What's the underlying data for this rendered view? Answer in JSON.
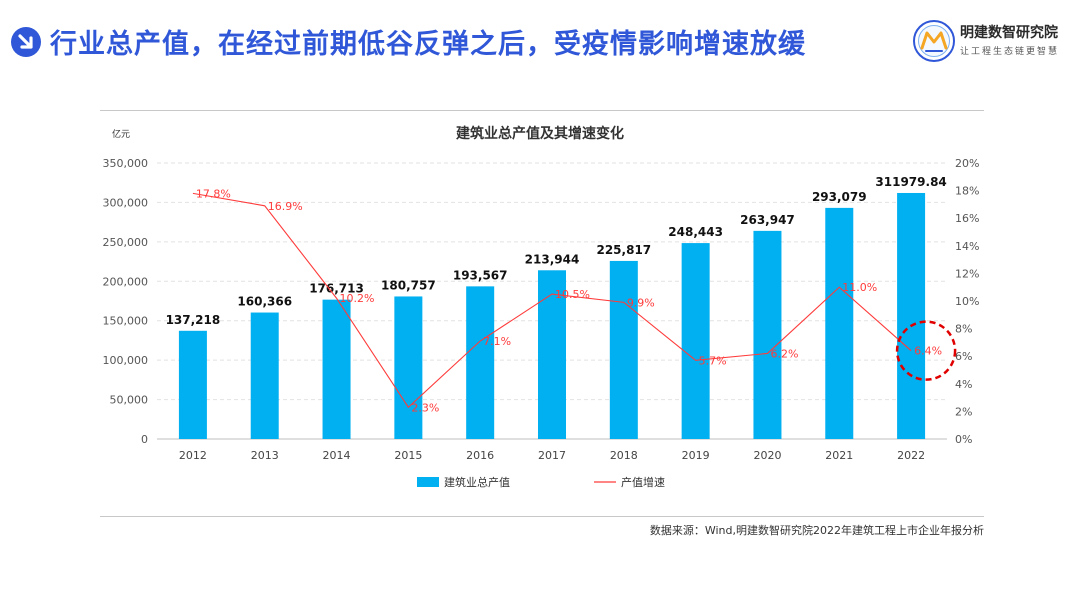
{
  "header": {
    "title": "行业总产值，在经过前期低谷反弹之后，受疫情影响增速放缓",
    "brand_name": "明建数智研究院",
    "brand_slogan": "让工程生态链更智慧"
  },
  "colors": {
    "title": "#2f57d8",
    "bar": "#00b0f0",
    "line": "#ff3b3b",
    "highlight": "#e00000"
  },
  "chart_data": {
    "type": "bar+line",
    "title": "建筑业总产值及其增速变化",
    "left_unit": "亿元",
    "categories": [
      "2012",
      "2013",
      "2014",
      "2015",
      "2016",
      "2017",
      "2018",
      "2019",
      "2020",
      "2021",
      "2022"
    ],
    "bar_series": {
      "name": "建筑业总产值",
      "values": [
        137218,
        160366,
        176713,
        180757,
        193567,
        213944,
        225817,
        248443,
        263947,
        293079,
        311979.84
      ],
      "labels": [
        "137,218",
        "160,366",
        "176,713",
        "180,757",
        "193,567",
        "213,944",
        "225,817",
        "248,443",
        "263,947",
        "293,079",
        "311979.84"
      ]
    },
    "line_series": {
      "name": "产值增速",
      "values": [
        17.8,
        16.9,
        10.2,
        2.3,
        7.1,
        10.5,
        9.9,
        5.7,
        6.2,
        11.0,
        6.4
      ],
      "labels": [
        "17.8%",
        "16.9%",
        "10.2%",
        "2.3%",
        "7.1%",
        "10.5%",
        "9.9%",
        "5.7%",
        "6.2%",
        "11.0%",
        "6.4%"
      ]
    },
    "y_left": {
      "min": 0,
      "max": 350000,
      "ticks": [
        0,
        50000,
        100000,
        150000,
        200000,
        250000,
        300000,
        350000
      ],
      "tick_labels": [
        "0",
        "50,000",
        "100,000",
        "150,000",
        "200,000",
        "250,000",
        "300,000",
        "350,000"
      ]
    },
    "y_right": {
      "min": 0,
      "max": 20,
      "ticks": [
        0,
        2,
        4,
        6,
        8,
        10,
        12,
        14,
        16,
        18,
        20
      ],
      "tick_labels": [
        "0%",
        "2%",
        "4%",
        "6%",
        "8%",
        "10%",
        "12%",
        "14%",
        "16%",
        "18%",
        "20%"
      ]
    },
    "highlighted_category": "2022",
    "grid": true,
    "legend_position": "bottom"
  },
  "footer": {
    "source": "数据来源：Wind,明建数智研究院2022年建筑工程上市企业年报分析"
  }
}
